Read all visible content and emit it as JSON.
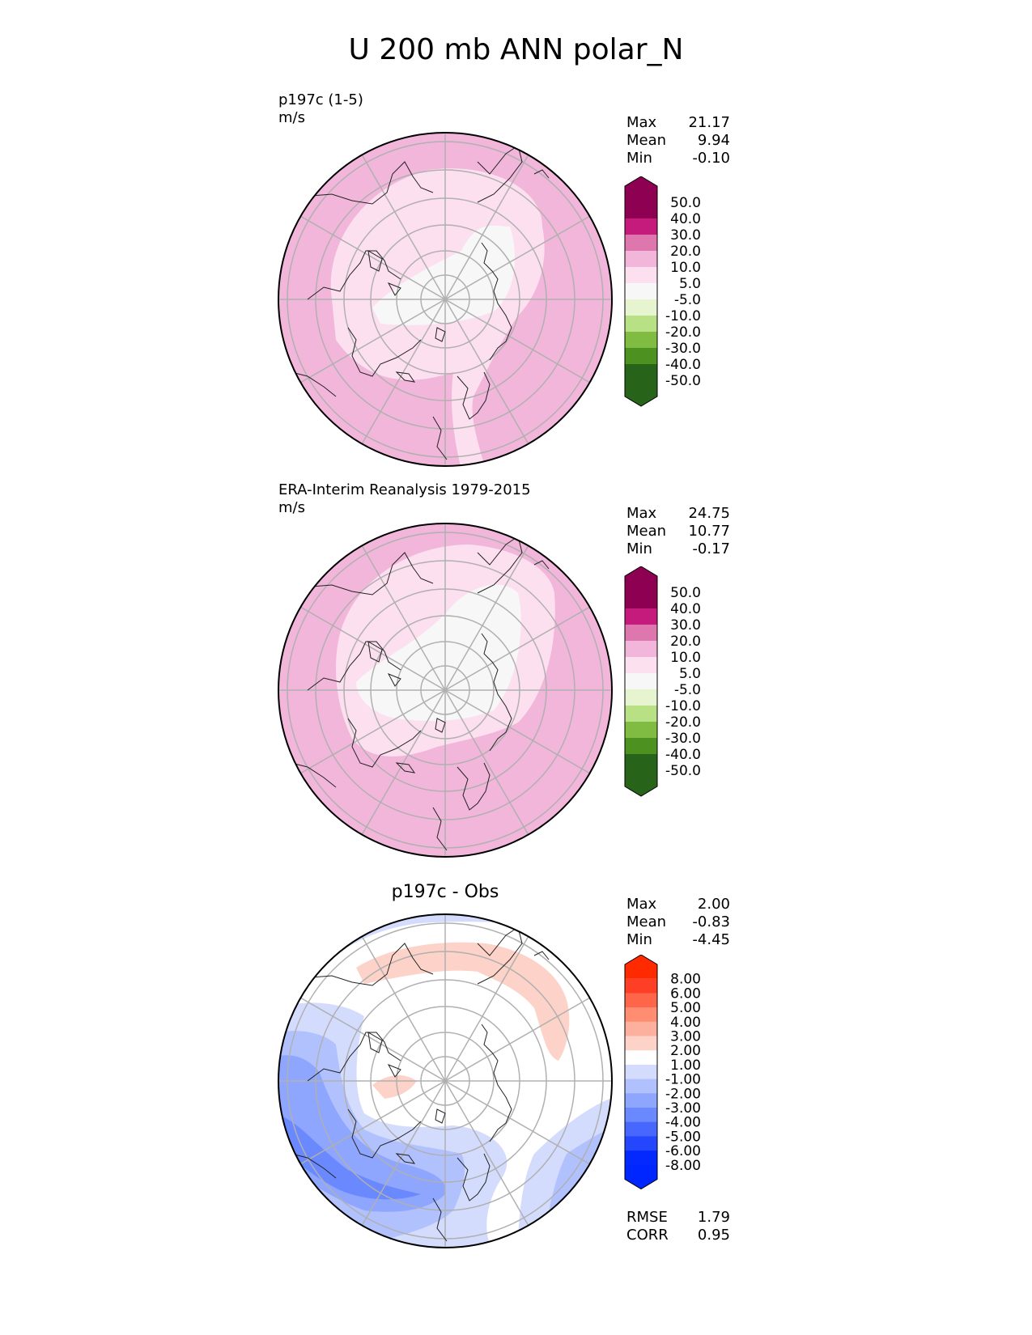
{
  "title": "U 200 mb ANN polar_N",
  "panels": [
    {
      "id": "test",
      "title": "p197c (1-5)",
      "units": "m/s",
      "stats": [
        {
          "label": "Max",
          "value": "21.17"
        },
        {
          "label": "Mean",
          "value": "9.94"
        },
        {
          "label": "Min",
          "value": "-0.10"
        }
      ],
      "colorbar": {
        "ticks": [
          "50.0",
          "40.0",
          "30.0",
          "20.0",
          "10.0",
          "5.0",
          "-5.0",
          "-10.0",
          "-20.0",
          "-30.0",
          "-40.0",
          "-50.0"
        ],
        "colors": [
          "#8e0152",
          "#c51b7d",
          "#de77ae",
          "#f1b6da",
          "#fde0ef",
          "#f7f7f7",
          "#e6f5d0",
          "#b8e186",
          "#7fbc41",
          "#4d9221",
          "#276419"
        ],
        "extend_top": "#8e0152",
        "extend_bottom": "#276419"
      }
    },
    {
      "id": "reference",
      "title": "ERA-Interim Reanalysis 1979-2015",
      "units": "m/s",
      "stats": [
        {
          "label": "Max",
          "value": "24.75"
        },
        {
          "label": "Mean",
          "value": "10.77"
        },
        {
          "label": "Min",
          "value": "-0.17"
        }
      ],
      "colorbar": {
        "ticks": [
          "50.0",
          "40.0",
          "30.0",
          "20.0",
          "10.0",
          "5.0",
          "-5.0",
          "-10.0",
          "-20.0",
          "-30.0",
          "-40.0",
          "-50.0"
        ],
        "colors": [
          "#8e0152",
          "#c51b7d",
          "#de77ae",
          "#f1b6da",
          "#fde0ef",
          "#f7f7f7",
          "#e6f5d0",
          "#b8e186",
          "#7fbc41",
          "#4d9221",
          "#276419"
        ],
        "extend_top": "#8e0152",
        "extend_bottom": "#276419"
      }
    },
    {
      "id": "difference",
      "title": "p197c - Obs",
      "units": "",
      "stats": [
        {
          "label": "Max",
          "value": "2.00"
        },
        {
          "label": "Mean",
          "value": "-0.83"
        },
        {
          "label": "Min",
          "value": "-4.45"
        }
      ],
      "metrics": [
        {
          "label": "RMSE",
          "value": "1.79"
        },
        {
          "label": "CORR",
          "value": "0.95"
        }
      ],
      "colorbar": {
        "ticks": [
          "8.00",
          "6.00",
          "5.00",
          "4.00",
          "3.00",
          "2.00",
          "1.00",
          "-1.00",
          "-2.00",
          "-3.00",
          "-4.00",
          "-5.00",
          "-6.00",
          "-8.00"
        ],
        "colors": [
          "#fe3e25",
          "#fe6549",
          "#fe8d72",
          "#fdb09d",
          "#fdd2c8",
          "#ffffff",
          "#d4dcfe",
          "#b1c1fe",
          "#8ea6fe",
          "#6b89fe",
          "#4767fe",
          "#2447fe",
          "#0429fe"
        ],
        "extend_top": "#ff2a00",
        "extend_bottom": "#0026ff"
      }
    }
  ],
  "chart_data": [
    {
      "type": "heatmap",
      "title": "p197c (1-5)",
      "projection": "polar stereographic (North Pole)",
      "units": "m/s",
      "levels": [
        -50,
        -40,
        -30,
        -20,
        -10,
        -5,
        5,
        10,
        20,
        30,
        40,
        50
      ],
      "stats": {
        "max": 21.17,
        "mean": 9.94,
        "min": -0.1
      }
    },
    {
      "type": "heatmap",
      "title": "ERA-Interim Reanalysis 1979-2015",
      "projection": "polar stereographic (North Pole)",
      "units": "m/s",
      "levels": [
        -50,
        -40,
        -30,
        -20,
        -10,
        -5,
        5,
        10,
        20,
        30,
        40,
        50
      ],
      "stats": {
        "max": 24.75,
        "mean": 10.77,
        "min": -0.17
      }
    },
    {
      "type": "heatmap",
      "title": "p197c - Obs",
      "projection": "polar stereographic (North Pole)",
      "levels": [
        -8,
        -6,
        -5,
        -4,
        -3,
        -2,
        -1,
        1,
        2,
        3,
        4,
        5,
        6,
        8
      ],
      "stats": {
        "max": 2.0,
        "mean": -0.83,
        "min": -4.45
      },
      "metrics": {
        "rmse": 1.79,
        "corr": 0.95
      }
    }
  ]
}
